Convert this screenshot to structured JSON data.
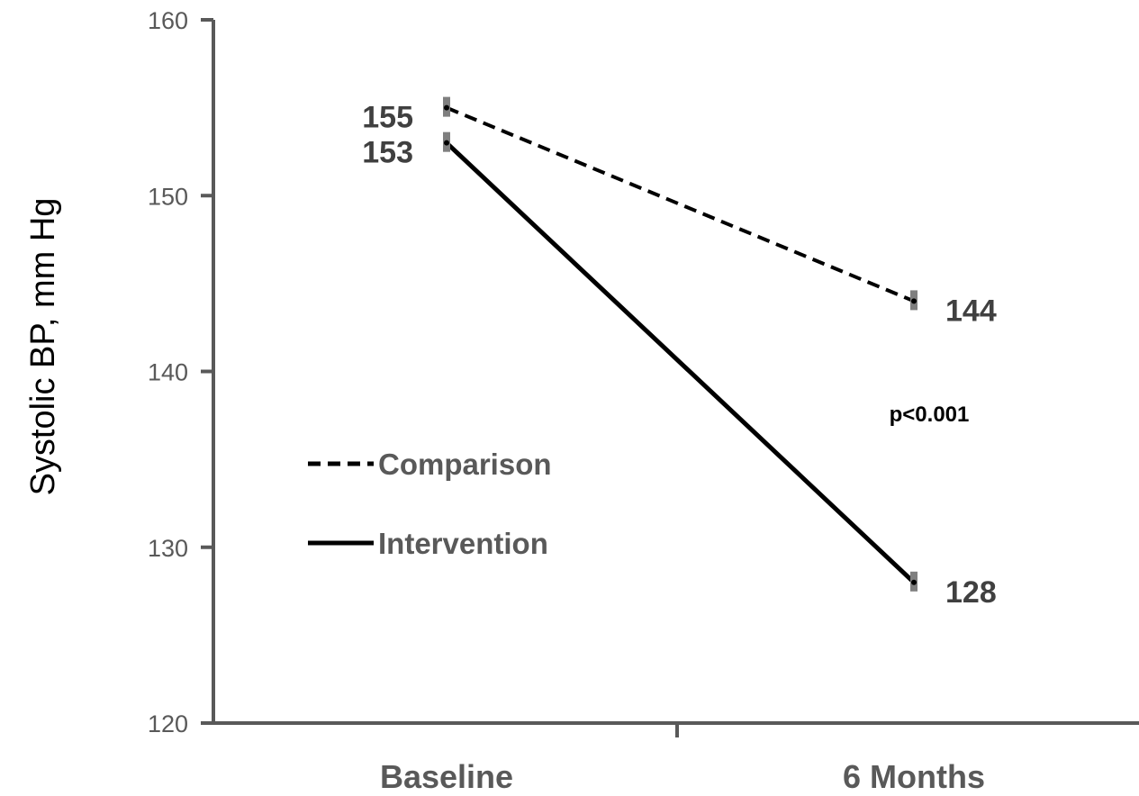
{
  "chart_data": {
    "type": "line",
    "categories": [
      "Baseline",
      "6 Months"
    ],
    "series": [
      {
        "name": "Comparison",
        "values": [
          155,
          144
        ],
        "style": "dashed",
        "color": "#000000",
        "labels": [
          "155",
          "144"
        ]
      },
      {
        "name": "Intervention",
        "values": [
          153,
          128
        ],
        "style": "solid",
        "color": "#000000",
        "labels": [
          "153",
          "128"
        ]
      }
    ],
    "ylabel": "Systolic BP, mm Hg",
    "xlabel": "",
    "ylim": [
      120,
      160
    ],
    "yticks": [
      120,
      130,
      140,
      150,
      160
    ],
    "annotation": "p<0.001",
    "legend_position": "left-center",
    "grid": false,
    "axis_color": "#595959",
    "errorbar_color": "#7f7f7f"
  }
}
